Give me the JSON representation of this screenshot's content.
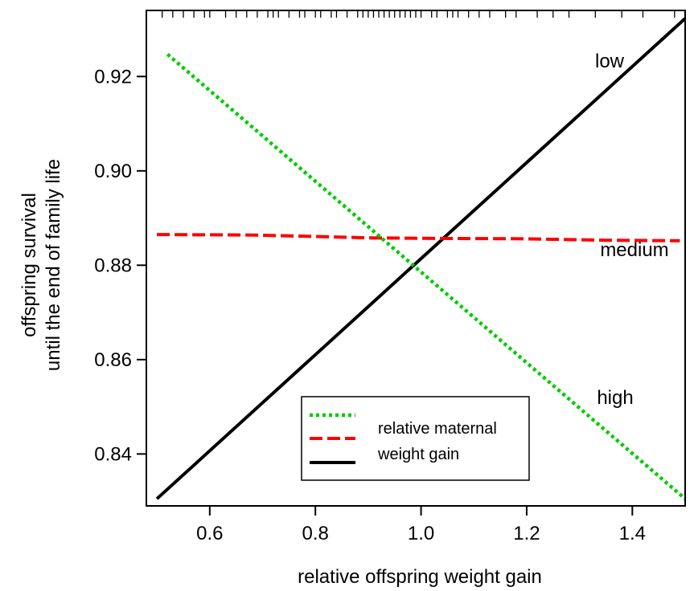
{
  "chart_data": {
    "type": "line",
    "title": "",
    "xlabel": "relative offspring weight gain",
    "ylabel_lines": [
      "offspring survival",
      "until the end of family life"
    ],
    "xlim": [
      0.48,
      1.5
    ],
    "ylim": [
      0.829,
      0.934
    ],
    "x_ticks": [
      0.6,
      0.8,
      1.0,
      1.2,
      1.4
    ],
    "x_tick_labels": [
      "0.6",
      "0.8",
      "1.0",
      "1.2",
      "1.4"
    ],
    "y_ticks": [
      0.84,
      0.86,
      0.88,
      0.9,
      0.92
    ],
    "y_tick_labels": [
      "0.84",
      "0.86",
      "0.88",
      "0.90",
      "0.92"
    ],
    "rug_x": [
      0.51,
      0.53,
      0.55,
      0.57,
      0.59,
      0.6,
      0.63,
      0.65,
      0.67,
      0.69,
      0.71,
      0.72,
      0.73,
      0.75,
      0.77,
      0.78,
      0.8,
      0.81,
      0.83,
      0.84,
      0.86,
      0.88,
      0.89,
      0.9,
      0.91,
      0.92,
      0.93,
      0.94,
      0.95,
      0.96,
      0.97,
      0.98,
      0.99,
      1.0,
      1.02,
      1.03,
      1.05,
      1.06,
      1.07,
      1.09,
      1.11,
      1.13,
      1.16,
      1.18,
      1.22,
      1.25,
      1.28,
      1.33,
      1.38,
      1.42,
      1.48
    ],
    "series": [
      {
        "label": "low",
        "color": "#000000",
        "style": "solid",
        "x": [
          0.5,
          1.5
        ],
        "y": [
          0.8305,
          0.9323
        ]
      },
      {
        "label": "medium",
        "color": "#ff0000",
        "style": "dashed",
        "x": [
          0.5,
          0.68,
          0.8,
          0.9,
          1.0,
          1.2,
          1.35,
          1.49
        ],
        "y": [
          0.8865,
          0.8864,
          0.8861,
          0.8858,
          0.8857,
          0.8856,
          0.8853,
          0.8852
        ]
      },
      {
        "label": "high",
        "color": "#00cc00",
        "style": "dotted",
        "x": [
          0.52,
          1.5
        ],
        "y": [
          0.9247,
          0.8305
        ]
      }
    ],
    "legend": {
      "position": "bottom-center",
      "text_lines": [
        "relative maternal",
        "weight gain"
      ]
    }
  }
}
